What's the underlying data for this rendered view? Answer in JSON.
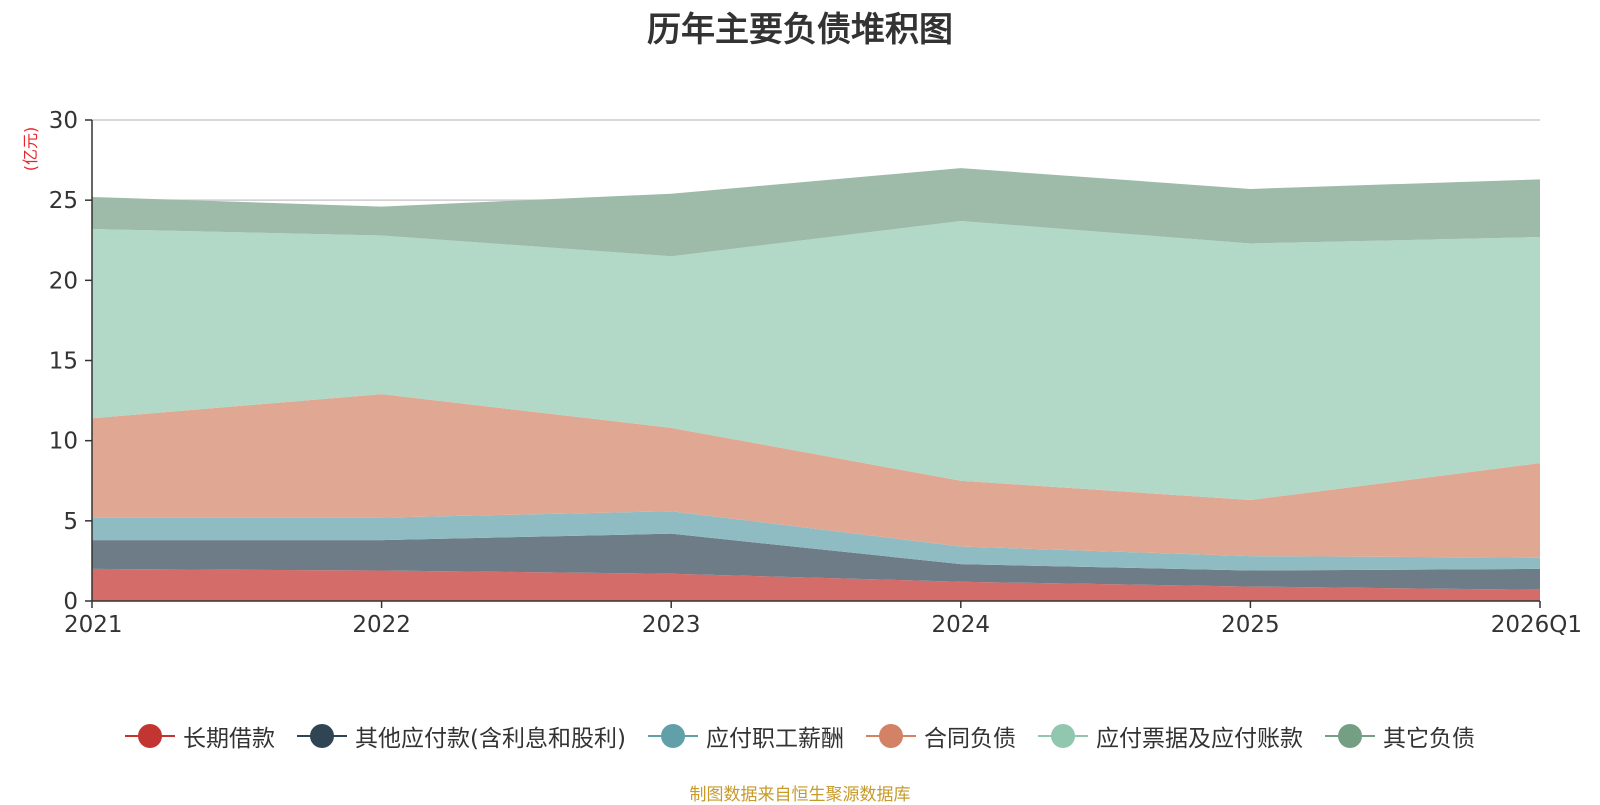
{
  "chart_data": {
    "type": "area",
    "stacked": true,
    "title": "历年主要负债堆积图",
    "ylabel": "(亿元)",
    "xlabel": "",
    "categories": [
      "2021",
      "2022",
      "2023",
      "2024",
      "2025",
      "2026Q1"
    ],
    "ylim": [
      0,
      30
    ],
    "yticks": [
      0,
      5,
      10,
      15,
      20,
      25,
      30
    ],
    "grid": true,
    "legend_position": "bottom",
    "series": [
      {
        "name": "长期借款",
        "color": "#c23531",
        "area_color": "#d46c6a",
        "values": [
          2.0,
          1.9,
          1.7,
          1.2,
          0.9,
          0.7
        ]
      },
      {
        "name": "其他应付款(含利息和股利)",
        "color": "#2f4554",
        "area_color": "#6e7c87",
        "values": [
          1.8,
          1.9,
          2.5,
          1.1,
          1.0,
          1.3
        ]
      },
      {
        "name": "应付职工薪酬",
        "color": "#61a0a8",
        "area_color": "#8fbcc2",
        "values": [
          1.4,
          1.4,
          1.4,
          1.1,
          0.9,
          0.7
        ]
      },
      {
        "name": "合同负债",
        "color": "#d48265",
        "area_color": "#e0a793",
        "values": [
          6.2,
          7.7,
          5.2,
          4.1,
          3.5,
          5.9
        ]
      },
      {
        "name": "应付票据及应付账款",
        "color": "#91c7ae",
        "area_color": "#b2d8c7",
        "values": [
          11.8,
          9.9,
          10.7,
          16.2,
          16.0,
          14.1
        ]
      },
      {
        "name": "其它负债",
        "color": "#749f83",
        "area_color": "#9dbba8",
        "values": [
          2.0,
          1.8,
          3.9,
          3.3,
          3.4,
          3.6
        ]
      }
    ]
  },
  "footer": {
    "source": "制图数据来自恒生聚源数据库"
  }
}
